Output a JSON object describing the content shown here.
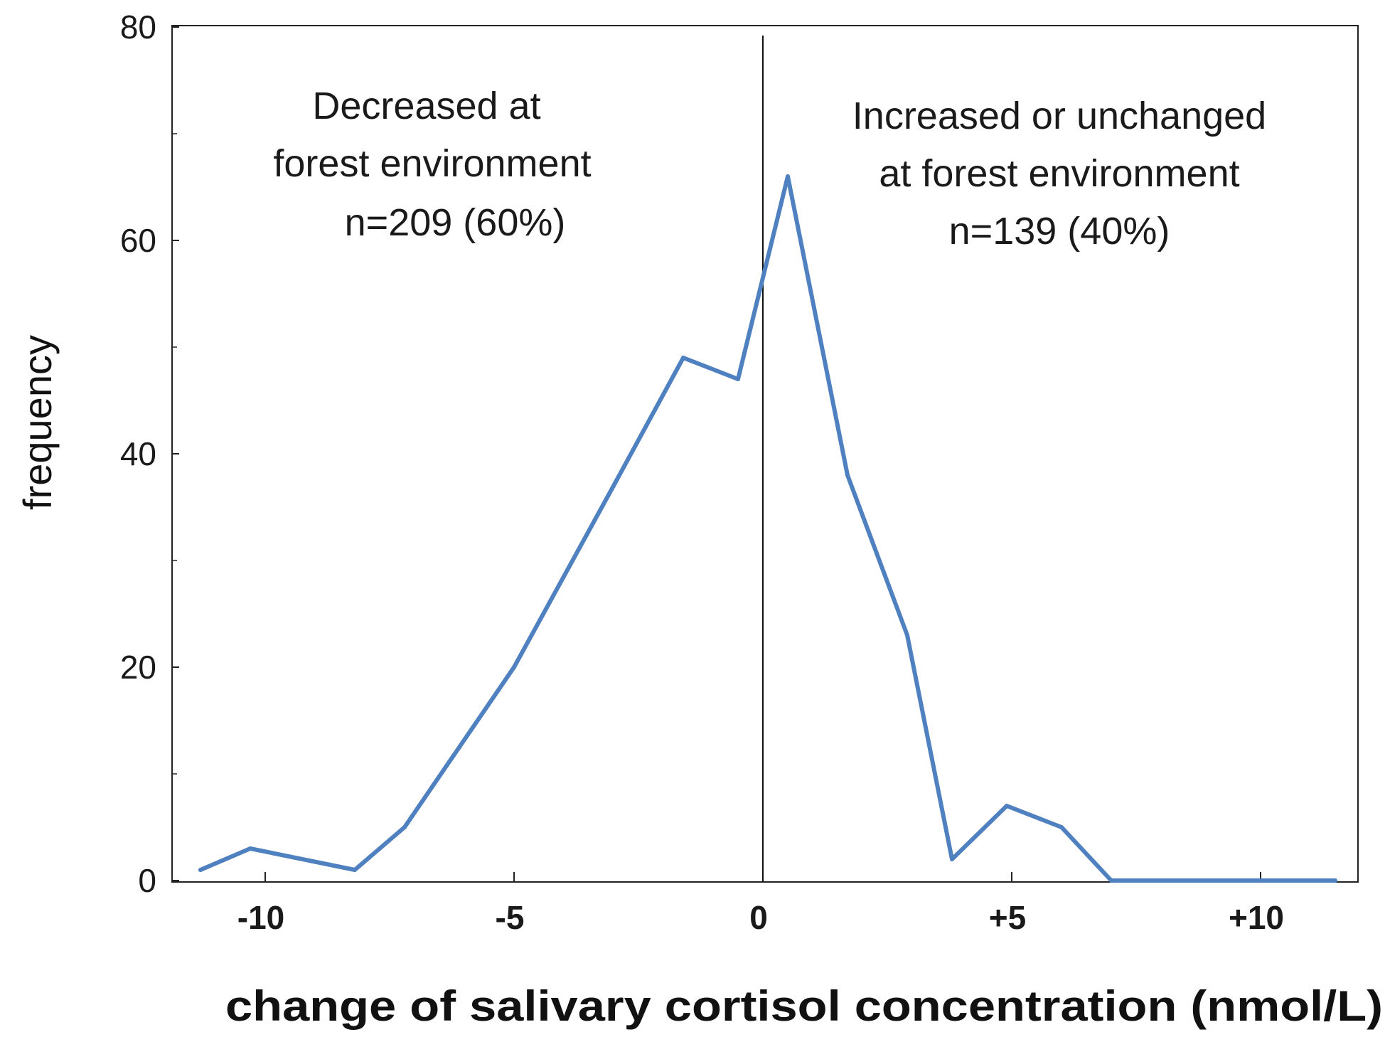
{
  "chart_data": {
    "type": "line",
    "title": "",
    "xlabel": "change of salivary cortisol concentration (nmol/L)",
    "ylabel": "frequency",
    "xlim": [
      -12,
      12
    ],
    "ylim": [
      0,
      80
    ],
    "x_ticks": [
      {
        "value": -10,
        "label": "-10"
      },
      {
        "value": -5,
        "label": "-5"
      },
      {
        "value": 0,
        "label": "0"
      },
      {
        "value": 5,
        "label": "+5"
      },
      {
        "value": 10,
        "label": "+10"
      }
    ],
    "y_ticks": [
      {
        "value": 0,
        "label": "0"
      },
      {
        "value": 20,
        "label": "20"
      },
      {
        "value": 40,
        "label": "40"
      },
      {
        "value": 60,
        "label": "60"
      },
      {
        "value": 80,
        "label": "80"
      }
    ],
    "y_minor_ticks": [
      10,
      30,
      50,
      70
    ],
    "divider_x": 0,
    "grid": false,
    "series": [
      {
        "name": "frequency",
        "color": "#4f81c0",
        "x": [
          -11.3,
          -10.3,
          -8.2,
          -7.2,
          -5.0,
          -3.0,
          -1.6,
          -0.5,
          0.5,
          1.7,
          2.9,
          3.8,
          4.9,
          6.0,
          7.0,
          11.5
        ],
        "y": [
          1,
          3,
          1,
          5,
          20,
          37,
          49,
          47,
          66,
          38,
          23,
          2,
          7,
          5,
          0,
          0
        ]
      }
    ],
    "annotations": [
      {
        "id": "decreased",
        "lines": [
          "Decreased at",
          "forest environment",
          "n=209 (60%)"
        ]
      },
      {
        "id": "increased",
        "lines": [
          "Increased or unchanged",
          "at forest environment",
          "n=139 (40%)"
        ]
      }
    ]
  }
}
